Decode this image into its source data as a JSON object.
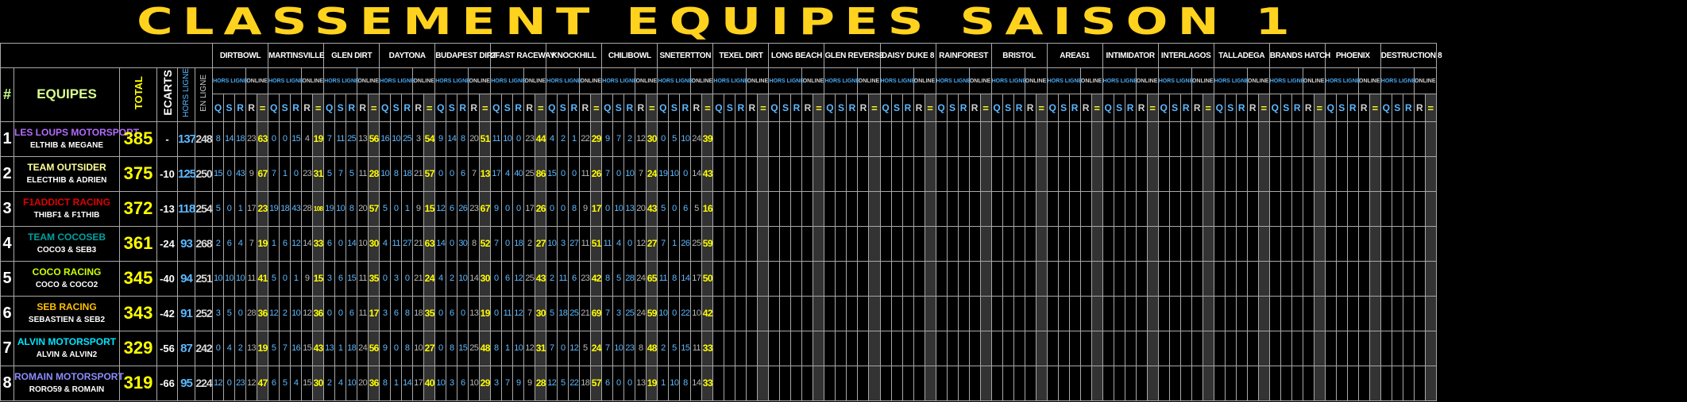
{
  "title": "CLASSEMENT EQUIPES SAISON 1",
  "headers": {
    "rank": "#",
    "teams": "EQUIPES",
    "total": "TOTAL",
    "ecarts": "ECARTS",
    "hors_ligne": "HORS LIGNE",
    "en_ligne": "EN LIGNE",
    "sub_hors": "HORS LIGNE",
    "sub_online": "ONLINE",
    "cols": [
      "Q",
      "S",
      "R",
      "R",
      "="
    ]
  },
  "tracks": [
    "DIRTBOWL",
    "MARTINSVILLE",
    "GLEN DIRT",
    "DAYTONA",
    "BUDAPEST DIRT",
    "2FAST RACEWAY",
    "KNOCKHILL",
    "CHILIBOWL",
    "SNETERTTON",
    "TEXEL DIRT",
    "LONG BEACH",
    "GLEN REVERSE",
    "DAISY DUKE 8",
    "RAINFOREST",
    "BRISTOL",
    "AREA51",
    "INTIMIDATOR",
    "INTERLAGOS",
    "TALLADEGA",
    "BRANDS HATCH",
    "PHOENIX",
    "DESTRUCTION 8"
  ],
  "colors": {
    "title": "#ffd21e",
    "total": "#ffff00",
    "hors_ligne": "#5cb8ff",
    "online": "#b8b8b8",
    "sum_bg": "#333333"
  },
  "teams": [
    {
      "rank": "1",
      "name": "LES LOUPS MOTORSPORT",
      "drivers": "ELTHIB & MEGANE",
      "color": "#b36bff",
      "total": "385",
      "ecart": "-",
      "hors": "137",
      "en": "248",
      "results": [
        [
          8,
          14,
          18,
          23,
          63
        ],
        [
          0,
          0,
          15,
          4,
          19
        ],
        [
          7,
          11,
          25,
          13,
          56
        ],
        [
          16,
          10,
          25,
          3,
          54
        ],
        [
          9,
          14,
          8,
          20,
          51
        ],
        [
          11,
          10,
          0,
          23,
          44
        ],
        [
          4,
          2,
          1,
          22,
          29
        ],
        [
          9,
          7,
          2,
          12,
          30
        ],
        [
          0,
          5,
          10,
          24,
          39
        ]
      ]
    },
    {
      "rank": "2",
      "name": "TEAM OUTSIDER",
      "drivers": "ELECTHIB & ADRIEN",
      "color": "#ffff99",
      "total": "375",
      "ecart": "-10",
      "hors": "125",
      "en": "250",
      "results": [
        [
          15,
          0,
          43,
          9,
          67
        ],
        [
          7,
          1,
          0,
          23,
          31
        ],
        [
          5,
          7,
          5,
          11,
          28
        ],
        [
          10,
          8,
          18,
          21,
          57
        ],
        [
          0,
          0,
          6,
          7,
          13
        ],
        [
          17,
          4,
          40,
          25,
          86
        ],
        [
          15,
          0,
          0,
          11,
          26
        ],
        [
          7,
          0,
          10,
          7,
          24
        ],
        [
          19,
          10,
          0,
          14,
          43
        ]
      ]
    },
    {
      "rank": "3",
      "name": "F1ADDICT RACING",
      "drivers": "THIBF1 & F1THIB",
      "color": "#e00000",
      "total": "372",
      "ecart": "-13",
      "hors": "118",
      "en": "254",
      "results": [
        [
          5,
          0,
          1,
          17,
          23
        ],
        [
          19,
          18,
          43,
          28,
          108
        ],
        [
          19,
          10,
          8,
          20,
          57
        ],
        [
          5,
          0,
          1,
          9,
          15
        ],
        [
          12,
          6,
          26,
          23,
          67
        ],
        [
          9,
          0,
          0,
          17,
          26
        ],
        [
          0,
          0,
          8,
          9,
          17
        ],
        [
          0,
          10,
          13,
          20,
          43
        ],
        [
          5,
          0,
          6,
          5,
          16
        ]
      ]
    },
    {
      "rank": "4",
      "name": "TEAM COCOSEB",
      "drivers": "COCO3 & SEB3",
      "color": "#00a0a0",
      "total": "361",
      "ecart": "-24",
      "hors": "93",
      "en": "268",
      "results": [
        [
          2,
          6,
          4,
          7,
          19
        ],
        [
          1,
          6,
          12,
          14,
          33
        ],
        [
          6,
          0,
          14,
          10,
          30
        ],
        [
          4,
          11,
          27,
          21,
          63
        ],
        [
          14,
          0,
          30,
          8,
          52
        ],
        [
          7,
          0,
          18,
          2,
          27
        ],
        [
          10,
          3,
          27,
          11,
          51
        ],
        [
          11,
          4,
          0,
          12,
          27
        ],
        [
          7,
          1,
          26,
          25,
          59
        ]
      ]
    },
    {
      "rank": "5",
      "name": "COCO RACING",
      "drivers": "COCO & COCO2",
      "color": "#ccff00",
      "total": "345",
      "ecart": "-40",
      "hors": "94",
      "en": "251",
      "results": [
        [
          10,
          10,
          10,
          11,
          41
        ],
        [
          5,
          0,
          1,
          9,
          15
        ],
        [
          3,
          6,
          15,
          11,
          35
        ],
        [
          0,
          3,
          0,
          21,
          24
        ],
        [
          4,
          2,
          10,
          14,
          30
        ],
        [
          0,
          6,
          12,
          25,
          43
        ],
        [
          2,
          11,
          6,
          23,
          42
        ],
        [
          8,
          5,
          28,
          24,
          65
        ],
        [
          11,
          8,
          14,
          17,
          50
        ]
      ]
    },
    {
      "rank": "6",
      "name": "SEB RACING",
      "drivers": "SEBASTIEN & SEB2",
      "color": "#ffc000",
      "total": "343",
      "ecart": "-42",
      "hors": "91",
      "en": "252",
      "results": [
        [
          3,
          5,
          0,
          28,
          36
        ],
        [
          12,
          2,
          10,
          12,
          36
        ],
        [
          0,
          0,
          6,
          11,
          17
        ],
        [
          3,
          6,
          8,
          18,
          35
        ],
        [
          0,
          6,
          0,
          13,
          19
        ],
        [
          0,
          11,
          12,
          7,
          30
        ],
        [
          5,
          18,
          25,
          21,
          69
        ],
        [
          7,
          3,
          25,
          24,
          59
        ],
        [
          10,
          0,
          22,
          10,
          42
        ]
      ]
    },
    {
      "rank": "7",
      "name": "ALVIN MOTORSPORT",
      "drivers": "ALVIN & ALVIN2",
      "color": "#00e5ff",
      "total": "329",
      "ecart": "-56",
      "hors": "87",
      "en": "242",
      "results": [
        [
          0,
          4,
          2,
          13,
          19
        ],
        [
          5,
          7,
          16,
          15,
          43
        ],
        [
          13,
          1,
          18,
          24,
          56
        ],
        [
          9,
          0,
          8,
          10,
          27
        ],
        [
          0,
          8,
          15,
          25,
          48
        ],
        [
          8,
          1,
          10,
          12,
          31
        ],
        [
          7,
          0,
          12,
          5,
          24
        ],
        [
          7,
          10,
          23,
          8,
          48
        ],
        [
          2,
          5,
          15,
          11,
          33
        ]
      ]
    },
    {
      "rank": "8",
      "name": "ROMAIN MOTORSPORT",
      "drivers": "RORO59 & ROMAIN",
      "color": "#8c8cff",
      "total": "319",
      "ecart": "-66",
      "hors": "95",
      "en": "224",
      "results": [
        [
          12,
          0,
          23,
          12,
          47
        ],
        [
          6,
          5,
          4,
          15,
          30
        ],
        [
          2,
          4,
          10,
          20,
          36
        ],
        [
          8,
          1,
          14,
          17,
          40
        ],
        [
          10,
          3,
          6,
          10,
          29
        ],
        [
          3,
          7,
          9,
          9,
          28
        ],
        [
          12,
          5,
          22,
          18,
          57
        ],
        [
          6,
          0,
          0,
          13,
          19
        ],
        [
          1,
          10,
          8,
          14,
          33
        ]
      ]
    }
  ]
}
